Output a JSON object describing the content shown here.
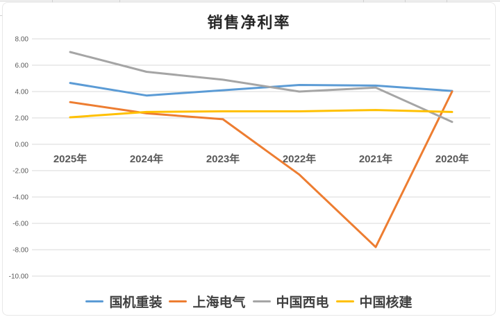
{
  "chart_data": {
    "type": "line",
    "title": "销售净利率",
    "categories": [
      "2025年",
      "2024年",
      "2023年",
      "2022年",
      "2021年",
      "2020年"
    ],
    "series": [
      {
        "name": "国机重装",
        "color": "#5B9BD5",
        "values": [
          4.65,
          3.7,
          4.1,
          4.5,
          4.45,
          4.05
        ]
      },
      {
        "name": "上海电气",
        "color": "#ED7D31",
        "values": [
          3.2,
          2.35,
          1.9,
          -2.3,
          -7.8,
          4.0
        ]
      },
      {
        "name": "中国西电",
        "color": "#A5A5A5",
        "values": [
          7.0,
          5.5,
          4.9,
          4.0,
          4.3,
          1.7
        ]
      },
      {
        "name": "中国核建",
        "color": "#FFC000",
        "values": [
          2.05,
          2.45,
          2.5,
          2.5,
          2.6,
          2.45
        ]
      }
    ],
    "ylim": [
      -10,
      8
    ],
    "yticks": [
      8,
      6,
      4,
      2,
      0,
      -2,
      -4,
      -6,
      -8,
      -10
    ],
    "ytick_labels": [
      "8.00",
      "6.00",
      "4.00",
      "2.00",
      "0.00",
      "-2.00",
      "-4.00",
      "-6.00",
      "-8.00",
      "-10.00"
    ],
    "xlabel": "",
    "ylabel": "",
    "grid": "horizontal",
    "legend_position": "bottom",
    "gridline_color": "#D9D9D9",
    "tick_label_color": "#595959"
  }
}
